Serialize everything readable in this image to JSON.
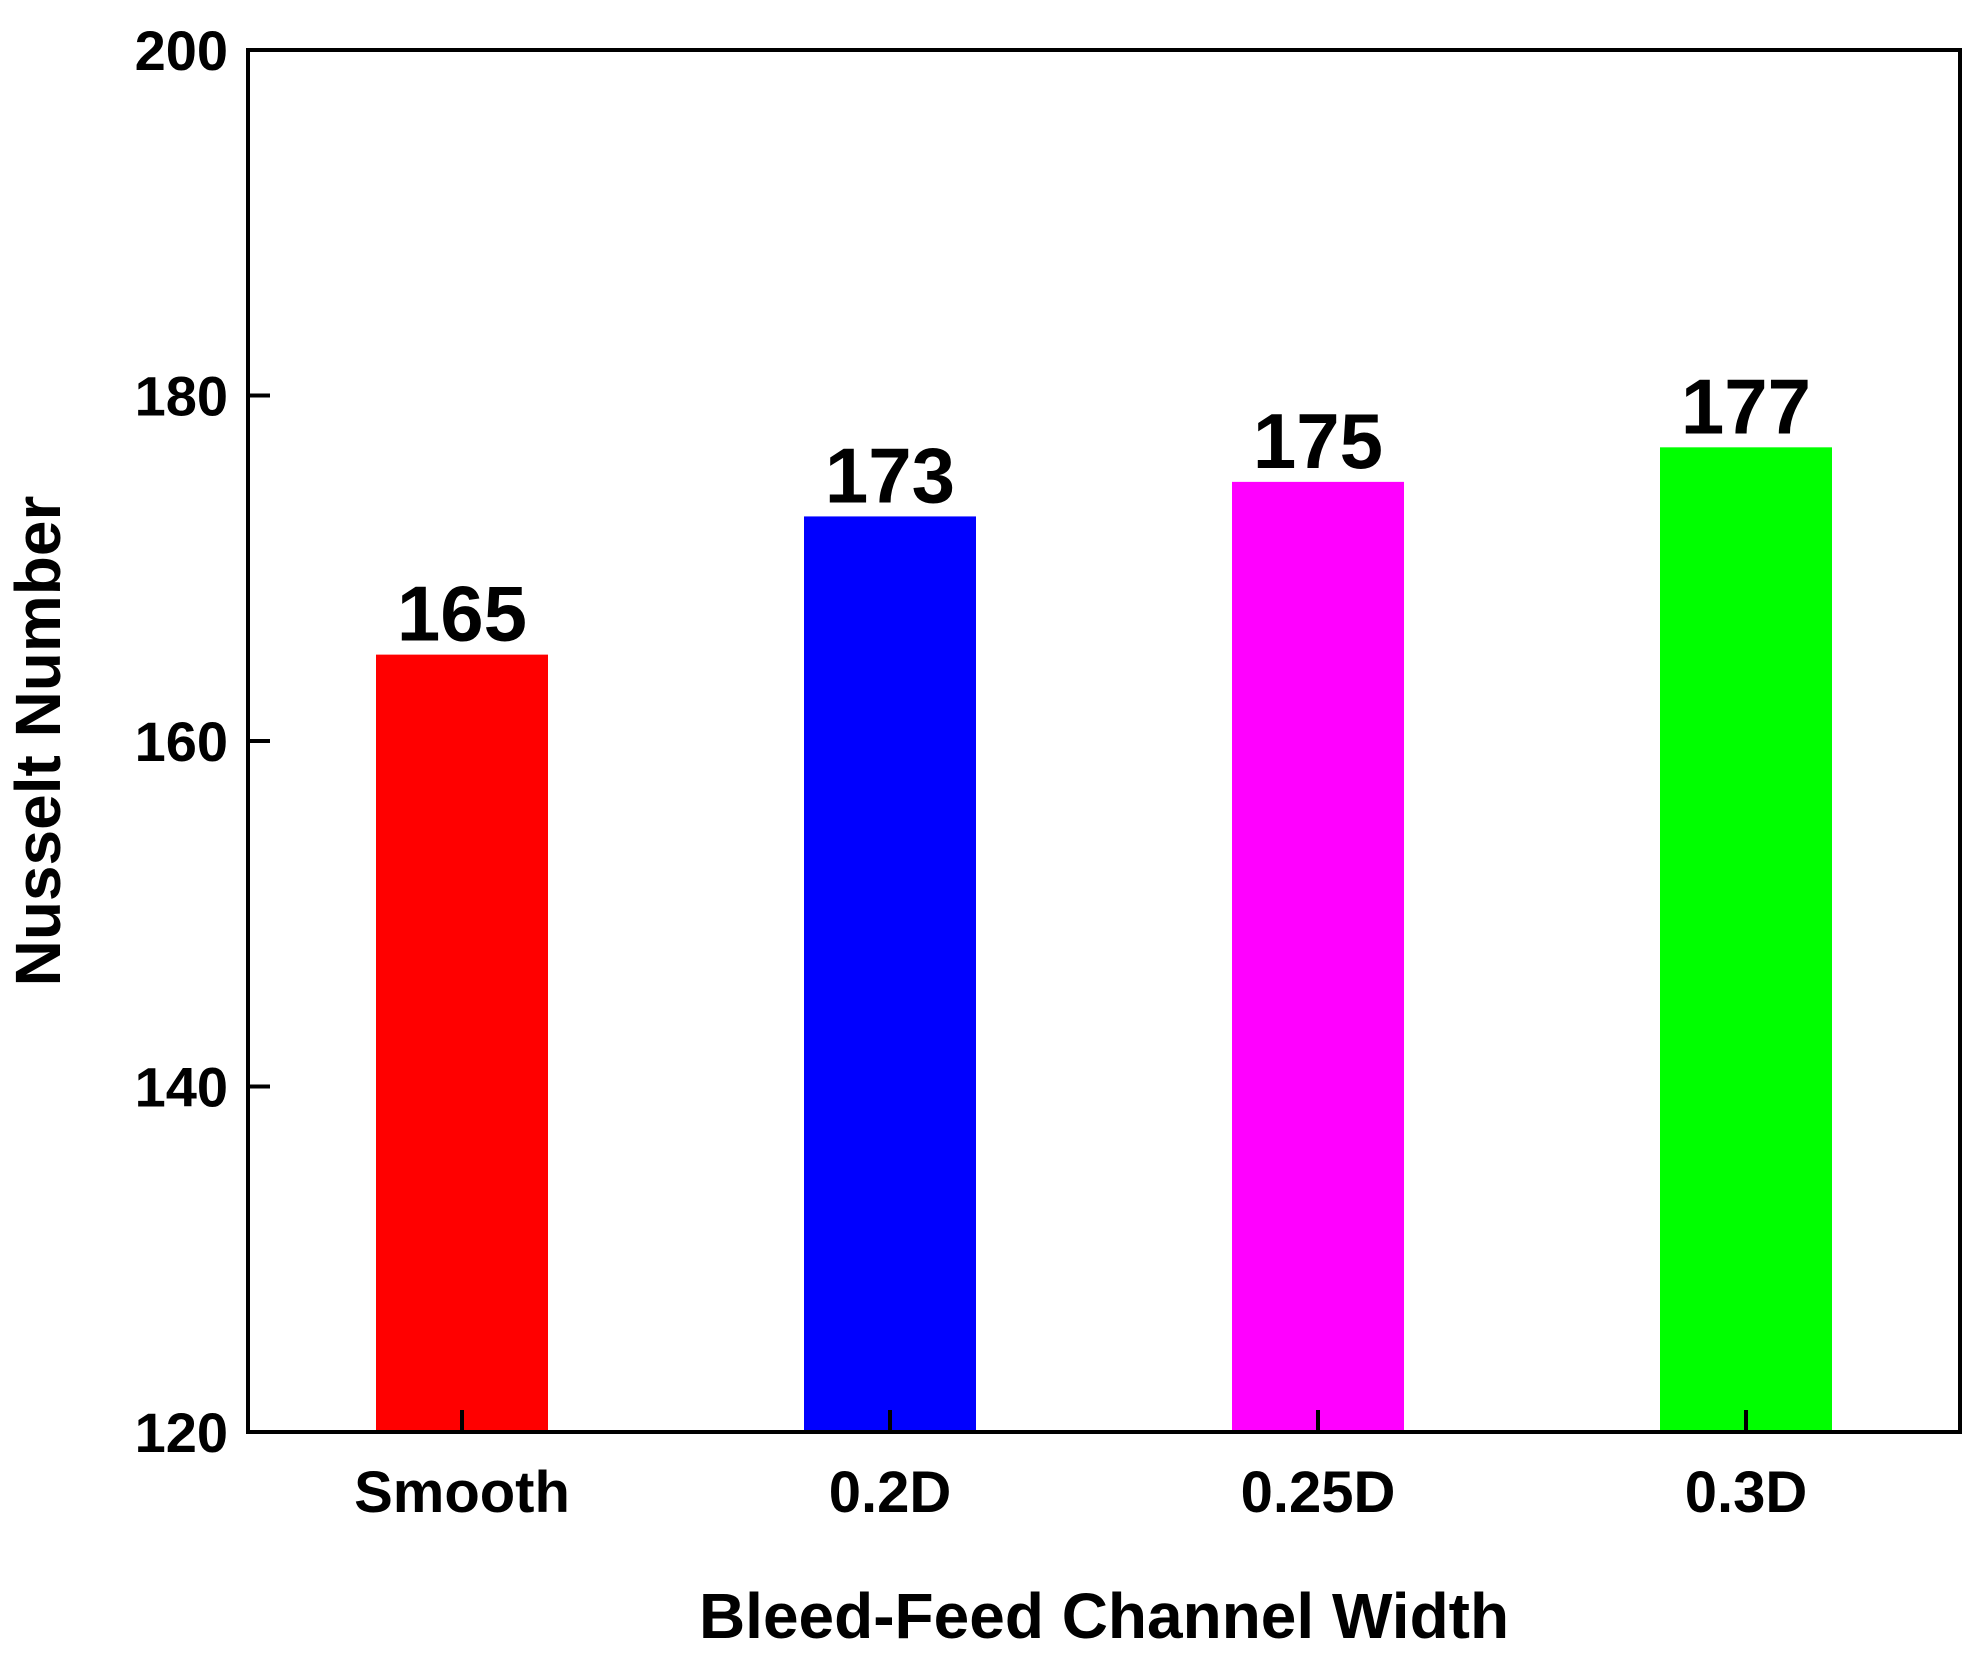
{
  "chart_data": {
    "type": "bar",
    "title": "",
    "xlabel": "Bleed-Feed Channel Width",
    "ylabel": "Nusselt Number",
    "categories": [
      "Smooth",
      "0.2D",
      "0.25D",
      "0.3D"
    ],
    "values": [
      165,
      173,
      175,
      177
    ],
    "value_labels": [
      "165",
      "173",
      "175",
      "177"
    ],
    "colors": [
      "#ff0000",
      "#0000ff",
      "#ff00ff",
      "#00ff00"
    ],
    "ylim": [
      120,
      200
    ],
    "yticks": [
      120,
      140,
      160,
      180,
      200
    ],
    "ytick_labels": [
      "120",
      "140",
      "160",
      "180",
      "200"
    ],
    "grid": false,
    "legend": "none"
  }
}
